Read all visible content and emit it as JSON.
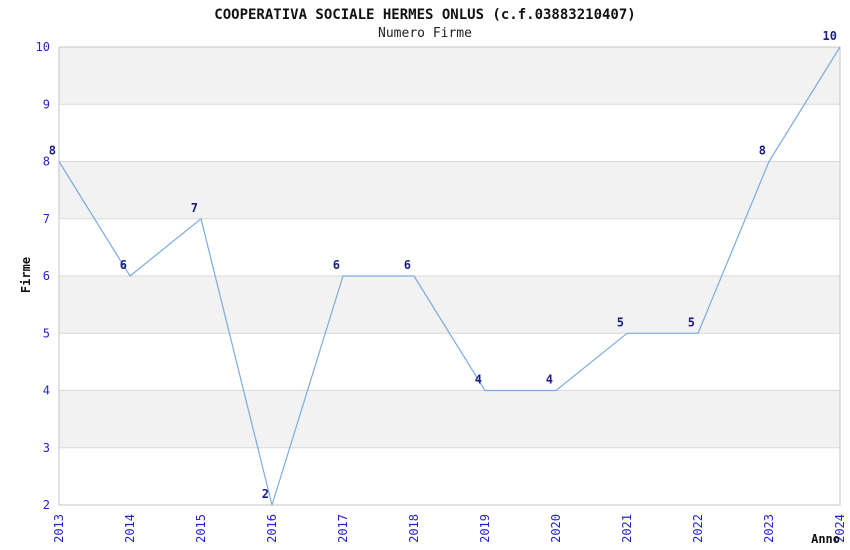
{
  "chart_data": {
    "type": "line",
    "title": "COOPERATIVA SOCIALE HERMES ONLUS (c.f.03883210407)",
    "subtitle": "Numero Firme",
    "xlabel": "Anno",
    "ylabel": "Firme",
    "categories": [
      "2013",
      "2014",
      "2015",
      "2016",
      "2017",
      "2018",
      "2019",
      "2020",
      "2021",
      "2022",
      "2023",
      "2024"
    ],
    "series": [
      {
        "name": "Numero Firme",
        "values": [
          8,
          6,
          7,
          2,
          6,
          6,
          4,
          4,
          5,
          5,
          8,
          10
        ]
      }
    ],
    "ylim": [
      2,
      10
    ],
    "yticks": [
      2,
      3,
      4,
      5,
      6,
      7,
      8,
      9,
      10
    ],
    "grid": "horizontal-only",
    "shaded_bands": [
      [
        3,
        4
      ],
      [
        5,
        6
      ],
      [
        7,
        8
      ],
      [
        9,
        10
      ]
    ],
    "legend_position": "none",
    "colors": {
      "line": "#7babe1",
      "tick_label": "#2323cc",
      "data_label": "#1c1c8c",
      "band_fill": "#f2f2f2",
      "gridline": "#d9d9d9",
      "plot_border": "#c6c6c6",
      "title_text": "#111111",
      "axis_title_text": "#111111",
      "background": "#ffffff"
    }
  }
}
